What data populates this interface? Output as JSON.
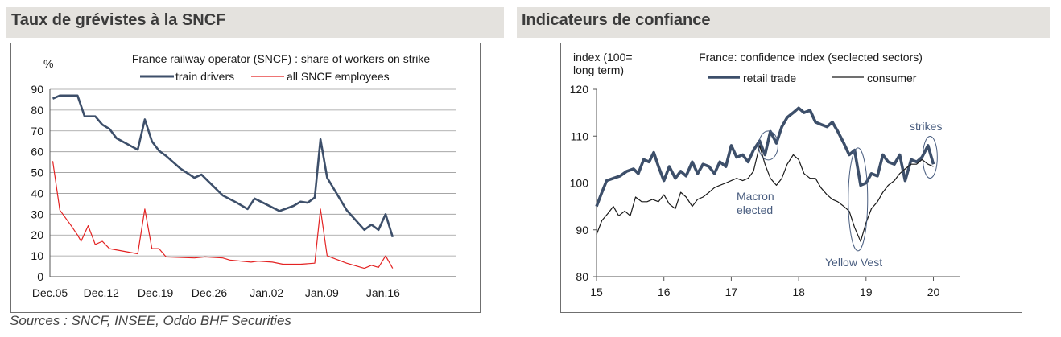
{
  "panels": {
    "left_title": "Taux de grévistes à la SNCF",
    "right_title": "Indicateurs de confiance"
  },
  "source": "Sources : SNCF, INSEE, Oddo BHF Securities",
  "chart_data": [
    {
      "type": "line",
      "title": "France railway operator (SNCF) : share of workers on strike",
      "ylabel": "%",
      "ylim": [
        0,
        90
      ],
      "yticks": [
        0,
        10,
        20,
        30,
        40,
        50,
        60,
        70,
        80,
        90
      ],
      "xlim": [
        2005.92,
        2017.4
      ],
      "xticks": [
        {
          "label": "Dec.05",
          "value": 2005.92
        },
        {
          "label": "Dec.12",
          "value": 2007.37
        },
        {
          "label": "Dec.19",
          "value": 2008.9
        },
        {
          "label": "Dec.26",
          "value": 2010.42
        },
        {
          "label": "Jan.02",
          "value": 2012.04
        },
        {
          "label": "Jan.09",
          "value": 2013.6
        },
        {
          "label": "Jan.16",
          "value": 2015.33
        }
      ],
      "grid": true,
      "legend": "top-center",
      "colors": {
        "train drivers": "#3d4f6a",
        "all SNCF employees": "#e32222"
      },
      "series": [
        {
          "name": "train drivers",
          "points": [
            [
              2006.0,
              85.5
            ],
            [
              2006.2,
              87
            ],
            [
              2006.5,
              87
            ],
            [
              2006.7,
              87
            ],
            [
              2006.9,
              77
            ],
            [
              2007.2,
              77
            ],
            [
              2007.4,
              73
            ],
            [
              2007.6,
              71
            ],
            [
              2007.8,
              66.5
            ],
            [
              2008.4,
              61
            ],
            [
              2008.6,
              75.5
            ],
            [
              2008.8,
              65
            ],
            [
              2009.0,
              60.5
            ],
            [
              2009.2,
              58
            ],
            [
              2009.6,
              52
            ],
            [
              2010.0,
              47.5
            ],
            [
              2010.2,
              49
            ],
            [
              2010.5,
              44
            ],
            [
              2010.8,
              39
            ],
            [
              2011.2,
              35.5
            ],
            [
              2011.5,
              32.5
            ],
            [
              2011.7,
              37.5
            ],
            [
              2012.0,
              35
            ],
            [
              2012.4,
              31.5
            ],
            [
              2012.8,
              34
            ],
            [
              2013.0,
              36
            ],
            [
              2013.2,
              35.5
            ],
            [
              2013.4,
              38
            ],
            [
              2013.56,
              66
            ],
            [
              2013.75,
              47.5
            ],
            [
              2014.3,
              32
            ],
            [
              2014.8,
              22.5
            ],
            [
              2015.0,
              25
            ],
            [
              2015.2,
              22.5
            ],
            [
              2015.4,
              30
            ],
            [
              2015.6,
              19
            ]
          ]
        },
        {
          "name": "all SNCF employees",
          "points": [
            [
              2006.0,
              55.5
            ],
            [
              2006.2,
              32
            ],
            [
              2006.5,
              25
            ],
            [
              2006.7,
              20
            ],
            [
              2006.8,
              17
            ],
            [
              2007.0,
              24.5
            ],
            [
              2007.2,
              15.5
            ],
            [
              2007.4,
              17
            ],
            [
              2007.6,
              13.5
            ],
            [
              2008.4,
              11
            ],
            [
              2008.6,
              32.5
            ],
            [
              2008.8,
              13.5
            ],
            [
              2009.0,
              13.5
            ],
            [
              2009.2,
              9.5
            ],
            [
              2010.0,
              9
            ],
            [
              2010.3,
              9.5
            ],
            [
              2010.8,
              9
            ],
            [
              2011.0,
              8
            ],
            [
              2011.6,
              7
            ],
            [
              2011.8,
              7.5
            ],
            [
              2012.2,
              7
            ],
            [
              2012.5,
              6
            ],
            [
              2013.0,
              6
            ],
            [
              2013.4,
              6.5
            ],
            [
              2013.56,
              32.5
            ],
            [
              2013.75,
              10
            ],
            [
              2014.3,
              6.5
            ],
            [
              2014.8,
              4
            ],
            [
              2015.0,
              5.5
            ],
            [
              2015.2,
              4.5
            ],
            [
              2015.4,
              10
            ],
            [
              2015.6,
              4
            ]
          ]
        }
      ]
    },
    {
      "type": "line",
      "title": "France: confidence index (seclected sectors)",
      "ylabel": "index (100= long term)",
      "ylim": [
        80,
        120
      ],
      "yticks": [
        80,
        90,
        100,
        110,
        120
      ],
      "xlim": [
        2015,
        2020.4
      ],
      "xticks": [
        "15",
        "16",
        "17",
        "18",
        "19",
        "20"
      ],
      "grid": false,
      "legend": "top-center",
      "colors": {
        "retail trade": "#3d4f6a",
        "consumer": "#1a1a1a",
        "annotation": "#4a5e80"
      },
      "annotations": [
        "Macron elected",
        "Yellow Vest",
        "strikes"
      ],
      "series": [
        {
          "name": "retail trade",
          "points": [
            [
              2015.0,
              95
            ],
            [
              2015.08,
              98
            ],
            [
              2015.15,
              100.5
            ],
            [
              2015.25,
              101
            ],
            [
              2015.35,
              101.5
            ],
            [
              2015.45,
              102.5
            ],
            [
              2015.55,
              103
            ],
            [
              2015.62,
              102
            ],
            [
              2015.7,
              105
            ],
            [
              2015.78,
              104.5
            ],
            [
              2015.85,
              106.5
            ],
            [
              2015.92,
              103.5
            ],
            [
              2016.0,
              100.5
            ],
            [
              2016.08,
              103.5
            ],
            [
              2016.17,
              101
            ],
            [
              2016.25,
              102.5
            ],
            [
              2016.33,
              101.5
            ],
            [
              2016.42,
              104.5
            ],
            [
              2016.5,
              102
            ],
            [
              2016.58,
              104
            ],
            [
              2016.67,
              103.5
            ],
            [
              2016.75,
              102
            ],
            [
              2016.83,
              104.5
            ],
            [
              2016.92,
              103.5
            ],
            [
              2017.0,
              108
            ],
            [
              2017.08,
              105.5
            ],
            [
              2017.17,
              106
            ],
            [
              2017.25,
              104.5
            ],
            [
              2017.33,
              107
            ],
            [
              2017.42,
              109
            ],
            [
              2017.5,
              106
            ],
            [
              2017.58,
              111
            ],
            [
              2017.67,
              108.5
            ],
            [
              2017.75,
              112
            ],
            [
              2017.83,
              114
            ],
            [
              2017.92,
              115
            ],
            [
              2018.0,
              116
            ],
            [
              2018.08,
              115
            ],
            [
              2018.17,
              115.5
            ],
            [
              2018.25,
              113
            ],
            [
              2018.33,
              112.5
            ],
            [
              2018.42,
              112
            ],
            [
              2018.5,
              113
            ],
            [
              2018.58,
              111
            ],
            [
              2018.67,
              108.5
            ],
            [
              2018.75,
              106
            ],
            [
              2018.83,
              107
            ],
            [
              2018.92,
              99.5
            ],
            [
              2019.0,
              100
            ],
            [
              2019.08,
              102
            ],
            [
              2019.17,
              101.5
            ],
            [
              2019.25,
              106
            ],
            [
              2019.33,
              104.5
            ],
            [
              2019.42,
              104
            ],
            [
              2019.5,
              106
            ],
            [
              2019.58,
              100.5
            ],
            [
              2019.67,
              105
            ],
            [
              2019.75,
              104.5
            ],
            [
              2019.83,
              105.5
            ],
            [
              2019.92,
              108
            ],
            [
              2020.0,
              104
            ]
          ]
        },
        {
          "name": "consumer",
          "points": [
            [
              2015.0,
              89
            ],
            [
              2015.08,
              92
            ],
            [
              2015.17,
              93.5
            ],
            [
              2015.25,
              95
            ],
            [
              2015.33,
              93
            ],
            [
              2015.42,
              94
            ],
            [
              2015.5,
              93
            ],
            [
              2015.58,
              97
            ],
            [
              2015.67,
              96
            ],
            [
              2015.75,
              96
            ],
            [
              2015.83,
              96.5
            ],
            [
              2015.92,
              96
            ],
            [
              2016.0,
              97.5
            ],
            [
              2016.08,
              95.5
            ],
            [
              2016.17,
              94.5
            ],
            [
              2016.25,
              98
            ],
            [
              2016.33,
              97
            ],
            [
              2016.42,
              95
            ],
            [
              2016.5,
              96.5
            ],
            [
              2016.58,
              97
            ],
            [
              2016.67,
              98
            ],
            [
              2016.75,
              99
            ],
            [
              2016.83,
              99.5
            ],
            [
              2016.92,
              100
            ],
            [
              2017.0,
              100.5
            ],
            [
              2017.08,
              101
            ],
            [
              2017.17,
              100.5
            ],
            [
              2017.25,
              101
            ],
            [
              2017.33,
              102.5
            ],
            [
              2017.42,
              108
            ],
            [
              2017.5,
              104
            ],
            [
              2017.58,
              101
            ],
            [
              2017.67,
              99.5
            ],
            [
              2017.75,
              101
            ],
            [
              2017.83,
              104
            ],
            [
              2017.92,
              106
            ],
            [
              2018.0,
              105
            ],
            [
              2018.08,
              102
            ],
            [
              2018.17,
              101
            ],
            [
              2018.25,
              101
            ],
            [
              2018.33,
              99
            ],
            [
              2018.42,
              97.5
            ],
            [
              2018.5,
              96.5
            ],
            [
              2018.58,
              96
            ],
            [
              2018.67,
              95
            ],
            [
              2018.75,
              94
            ],
            [
              2018.83,
              90.5
            ],
            [
              2018.92,
              87.5
            ],
            [
              2019.0,
              91.5
            ],
            [
              2019.08,
              94.5
            ],
            [
              2019.17,
              96
            ],
            [
              2019.25,
              98
            ],
            [
              2019.33,
              99.5
            ],
            [
              2019.42,
              100.5
            ],
            [
              2019.5,
              102
            ],
            [
              2019.58,
              103
            ],
            [
              2019.67,
              104
            ],
            [
              2019.75,
              104
            ],
            [
              2019.83,
              105
            ],
            [
              2019.92,
              104
            ],
            [
              2020.0,
              103.5
            ]
          ]
        }
      ]
    }
  ]
}
